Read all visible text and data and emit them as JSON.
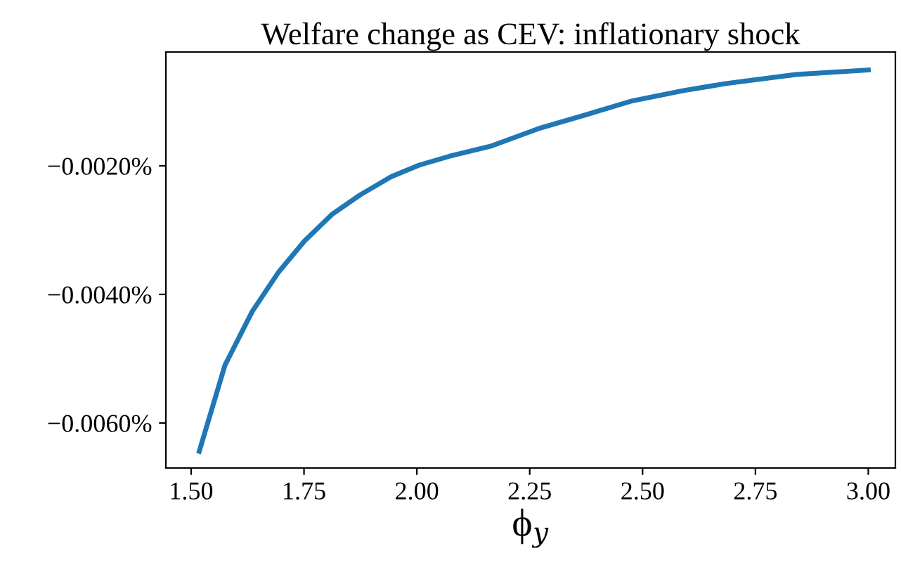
{
  "chart_data": {
    "type": "line",
    "title": "Welfare change as CEV: inflationary shock",
    "xlabel": "ϕ$_{y}$",
    "x": [
      1.518,
      1.575,
      1.635,
      1.694,
      1.751,
      1.813,
      1.875,
      1.943,
      2.005,
      2.073,
      2.166,
      2.27,
      2.373,
      2.477,
      2.591,
      2.685,
      2.84,
      3.0
    ],
    "series": [
      {
        "color": "#1f77b4",
        "values": [
          -0.00644,
          -0.0051,
          -0.00427,
          -0.00365,
          -0.00317,
          -0.00275,
          -0.00245,
          -0.00217,
          -0.00199,
          -0.00185,
          -0.00169,
          -0.00142,
          -0.00121,
          -0.00099,
          -0.00083,
          -0.00072,
          -0.00058,
          -0.00051
        ]
      }
    ],
    "xlim": [
      1.444,
      3.06
    ],
    "ylim": [
      -0.0067,
      -0.00023
    ],
    "xticks": [
      {
        "value": 1.5,
        "label": "1.50"
      },
      {
        "value": 1.75,
        "label": "1.75"
      },
      {
        "value": 2.0,
        "label": "2.00"
      },
      {
        "value": 2.25,
        "label": "2.25"
      },
      {
        "value": 2.5,
        "label": "2.50"
      },
      {
        "value": 2.75,
        "label": "2.75"
      },
      {
        "value": 3.0,
        "label": "3.00"
      }
    ],
    "yticks": [
      {
        "value": -0.006,
        "label": "−0.0060%"
      },
      {
        "value": -0.004,
        "label": "−0.0040%"
      },
      {
        "value": -0.002,
        "label": "−0.0020%"
      }
    ],
    "grid": false,
    "legend": false,
    "marker": "none",
    "line_style": "solid"
  }
}
